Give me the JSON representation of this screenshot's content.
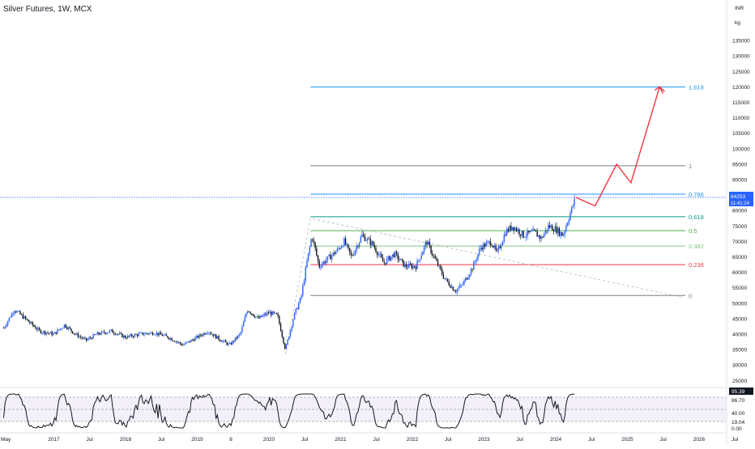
{
  "header": {
    "title": "Silver Futures, 1W, MCX"
  },
  "axis_header": {
    "currency": "INR",
    "unit": "kg"
  },
  "price_tag": {
    "value": "84253",
    "countdown": "11:41:24"
  },
  "oscillator": {
    "current": "95.39",
    "levels": [
      "86.70",
      "40.00",
      "19.04",
      "0.00"
    ]
  },
  "colors": {
    "up": "#2962ff",
    "down": "#131722",
    "projection": "#f23645",
    "fib_1618": "#2196f3",
    "fib_0618": "#089981",
    "fib_0236": "#f23645",
    "fib_0786": "#2196f3",
    "fib_05": "#4caf50",
    "fib_0382": "#81c784",
    "fib_1": "#787b86",
    "fib_0": "#787b86"
  },
  "chart_data": {
    "type": "candlestick",
    "x_axis": {
      "ticks": [
        {
          "label": "May",
          "t": 2016.33
        },
        {
          "label": "2017",
          "t": 2017.0
        },
        {
          "label": "Jul",
          "t": 2017.5
        },
        {
          "label": "2018",
          "t": 2018.0
        },
        {
          "label": "Jul",
          "t": 2018.5
        },
        {
          "label": "2019",
          "t": 2019.0
        },
        {
          "label": "8",
          "t": 2019.47
        },
        {
          "label": "2020",
          "t": 2020.0
        },
        {
          "label": "Jul",
          "t": 2020.5
        },
        {
          "label": "2021",
          "t": 2021.0
        },
        {
          "label": "Jul",
          "t": 2021.5
        },
        {
          "label": "2022",
          "t": 2022.0
        },
        {
          "label": "Jul",
          "t": 2022.5
        },
        {
          "label": "2023",
          "t": 2023.0
        },
        {
          "label": "Jul",
          "t": 2023.5
        },
        {
          "label": "2024",
          "t": 2024.0
        },
        {
          "label": "Jul",
          "t": 2024.5
        },
        {
          "label": "2025",
          "t": 2025.0
        },
        {
          "label": "Jul",
          "t": 2025.5
        },
        {
          "label": "2026",
          "t": 2026.0
        },
        {
          "label": "Jul",
          "t": 2026.5
        }
      ]
    },
    "y_axis": {
      "ticks": [
        25000,
        30000,
        35000,
        40000,
        45000,
        50000,
        55000,
        60000,
        65000,
        70000,
        75000,
        80000,
        85000,
        90000,
        95000,
        100000,
        105000,
        110000,
        115000,
        120000,
        125000,
        130000,
        135000
      ]
    },
    "price_anchors": [
      [
        2016.3,
        42000
      ],
      [
        2016.45,
        48000
      ],
      [
        2016.6,
        45000
      ],
      [
        2016.8,
        41000
      ],
      [
        2017.0,
        40000
      ],
      [
        2017.15,
        43000
      ],
      [
        2017.3,
        40000
      ],
      [
        2017.45,
        38000
      ],
      [
        2017.6,
        40000
      ],
      [
        2017.8,
        41000
      ],
      [
        2018.0,
        39000
      ],
      [
        2018.2,
        40000
      ],
      [
        2018.4,
        40500
      ],
      [
        2018.6,
        39000
      ],
      [
        2018.8,
        36500
      ],
      [
        2019.0,
        39000
      ],
      [
        2019.15,
        41000
      ],
      [
        2019.3,
        38500
      ],
      [
        2019.45,
        36500
      ],
      [
        2019.6,
        40000
      ],
      [
        2019.7,
        48000
      ],
      [
        2019.85,
        45000
      ],
      [
        2020.0,
        47000
      ],
      [
        2020.12,
        46000
      ],
      [
        2020.23,
        35000
      ],
      [
        2020.35,
        46000
      ],
      [
        2020.45,
        52000
      ],
      [
        2020.52,
        62000
      ],
      [
        2020.6,
        72000
      ],
      [
        2020.7,
        62000
      ],
      [
        2020.8,
        64000
      ],
      [
        2020.95,
        67000
      ],
      [
        2021.05,
        70000
      ],
      [
        2021.15,
        65000
      ],
      [
        2021.3,
        72000
      ],
      [
        2021.45,
        69000
      ],
      [
        2021.6,
        63000
      ],
      [
        2021.75,
        66000
      ],
      [
        2021.9,
        62000
      ],
      [
        2022.05,
        62000
      ],
      [
        2022.2,
        70000
      ],
      [
        2022.3,
        65000
      ],
      [
        2022.45,
        58000
      ],
      [
        2022.6,
        54000
      ],
      [
        2022.7,
        56000
      ],
      [
        2022.85,
        62000
      ],
      [
        2022.95,
        68000
      ],
      [
        2023.1,
        70000
      ],
      [
        2023.18,
        66000
      ],
      [
        2023.3,
        73000
      ],
      [
        2023.4,
        75000
      ],
      [
        2023.55,
        72000
      ],
      [
        2023.7,
        73000
      ],
      [
        2023.8,
        71000
      ],
      [
        2023.9,
        75000
      ],
      [
        2024.0,
        74000
      ],
      [
        2024.1,
        72000
      ],
      [
        2024.2,
        79000
      ],
      [
        2024.28,
        84253
      ]
    ],
    "projection": [
      [
        2024.28,
        84253
      ],
      [
        2024.55,
        81500
      ],
      [
        2024.85,
        95000
      ],
      [
        2025.05,
        89000
      ],
      [
        2025.45,
        120000
      ],
      [
        2025.52,
        118500
      ]
    ],
    "swing": [
      [
        2020.23,
        33500
      ],
      [
        2020.58,
        77500
      ],
      [
        2025.75,
        52000
      ]
    ],
    "fib_levels": [
      {
        "label": "1.618",
        "price": 120000
      },
      {
        "label": "1",
        "price": 94500
      },
      {
        "label": "0.786",
        "price": 85300
      },
      {
        "label": "0.618",
        "price": 78000
      },
      {
        "label": "0.5",
        "price": 73500
      },
      {
        "label": "0.382",
        "price": 68500
      },
      {
        "label": "0.236",
        "price": 62500
      },
      {
        "label": "0",
        "price": 52500
      }
    ],
    "ylim": [
      25000,
      140000
    ]
  }
}
